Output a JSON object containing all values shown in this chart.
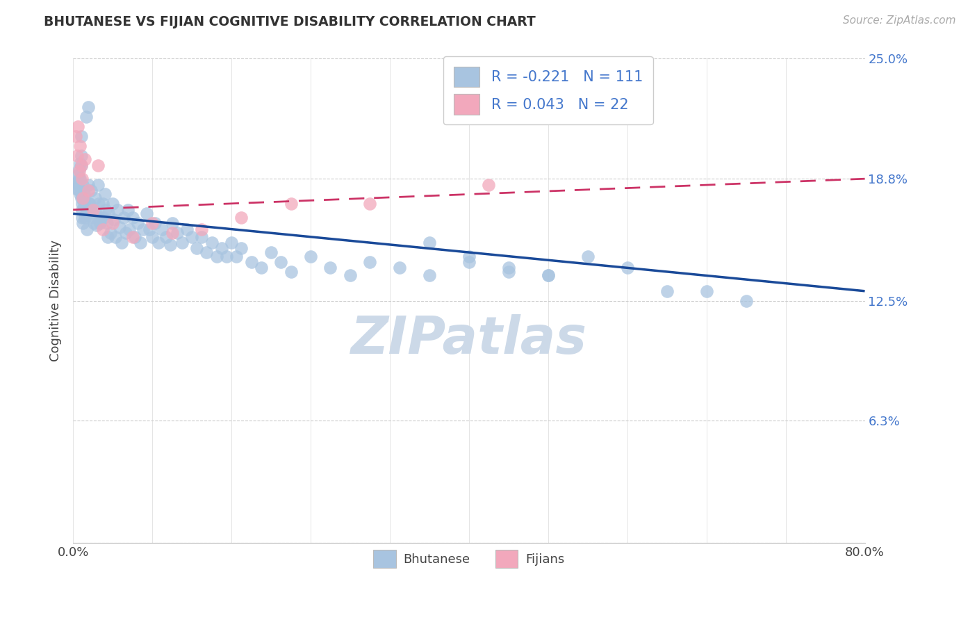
{
  "title": "BHUTANESE VS FIJIAN COGNITIVE DISABILITY CORRELATION CHART",
  "source": "Source: ZipAtlas.com",
  "ylabel": "Cognitive Disability",
  "x_min": 0.0,
  "x_max": 0.8,
  "y_min": 0.0,
  "y_max": 0.25,
  "yticks": [
    0.0,
    0.063,
    0.125,
    0.188,
    0.25
  ],
  "ytick_labels": [
    "",
    "6.3%",
    "12.5%",
    "18.8%",
    "25.0%"
  ],
  "r_bhutanese": -0.221,
  "n_bhutanese": 111,
  "r_fijian": 0.043,
  "n_fijian": 22,
  "bhutanese_color": "#a8c4e0",
  "fijian_color": "#f2a8bc",
  "trend_bhutanese_color": "#1a4a99",
  "trend_fijian_color": "#cc3366",
  "watermark_color": "#ccd9e8",
  "bhutanese_x": [
    0.003,
    0.004,
    0.005,
    0.005,
    0.006,
    0.006,
    0.006,
    0.007,
    0.007,
    0.007,
    0.008,
    0.008,
    0.008,
    0.008,
    0.009,
    0.009,
    0.009,
    0.01,
    0.01,
    0.01,
    0.011,
    0.011,
    0.012,
    0.012,
    0.013,
    0.013,
    0.014,
    0.015,
    0.015,
    0.016,
    0.017,
    0.018,
    0.019,
    0.02,
    0.021,
    0.022,
    0.023,
    0.024,
    0.025,
    0.026,
    0.027,
    0.028,
    0.03,
    0.031,
    0.032,
    0.033,
    0.034,
    0.035,
    0.036,
    0.038,
    0.04,
    0.041,
    0.043,
    0.045,
    0.047,
    0.049,
    0.051,
    0.053,
    0.055,
    0.057,
    0.06,
    0.062,
    0.065,
    0.068,
    0.071,
    0.074,
    0.077,
    0.08,
    0.083,
    0.086,
    0.09,
    0.094,
    0.098,
    0.1,
    0.105,
    0.11,
    0.115,
    0.12,
    0.125,
    0.13,
    0.135,
    0.14,
    0.145,
    0.15,
    0.155,
    0.16,
    0.165,
    0.17,
    0.18,
    0.19,
    0.2,
    0.21,
    0.22,
    0.24,
    0.26,
    0.28,
    0.3,
    0.33,
    0.36,
    0.4,
    0.44,
    0.48,
    0.52,
    0.56,
    0.6,
    0.36,
    0.4,
    0.44,
    0.48,
    0.64,
    0.68
  ],
  "bhutanese_y": [
    0.183,
    0.186,
    0.19,
    0.185,
    0.193,
    0.188,
    0.182,
    0.196,
    0.188,
    0.18,
    0.21,
    0.2,
    0.195,
    0.178,
    0.175,
    0.172,
    0.168,
    0.185,
    0.178,
    0.165,
    0.18,
    0.174,
    0.176,
    0.168,
    0.22,
    0.17,
    0.162,
    0.225,
    0.185,
    0.175,
    0.175,
    0.182,
    0.168,
    0.172,
    0.165,
    0.178,
    0.17,
    0.164,
    0.185,
    0.175,
    0.165,
    0.168,
    0.175,
    0.168,
    0.18,
    0.172,
    0.165,
    0.158,
    0.17,
    0.16,
    0.175,
    0.167,
    0.158,
    0.172,
    0.163,
    0.155,
    0.168,
    0.16,
    0.172,
    0.162,
    0.168,
    0.158,
    0.165,
    0.155,
    0.162,
    0.17,
    0.162,
    0.158,
    0.165,
    0.155,
    0.162,
    0.158,
    0.154,
    0.165,
    0.16,
    0.155,
    0.162,
    0.158,
    0.152,
    0.158,
    0.15,
    0.155,
    0.148,
    0.152,
    0.148,
    0.155,
    0.148,
    0.152,
    0.145,
    0.142,
    0.15,
    0.145,
    0.14,
    0.148,
    0.142,
    0.138,
    0.145,
    0.142,
    0.138,
    0.145,
    0.14,
    0.138,
    0.148,
    0.142,
    0.13,
    0.155,
    0.148,
    0.142,
    0.138,
    0.13,
    0.125
  ],
  "fijian_x": [
    0.003,
    0.004,
    0.005,
    0.006,
    0.007,
    0.008,
    0.009,
    0.01,
    0.012,
    0.015,
    0.02,
    0.025,
    0.03,
    0.04,
    0.06,
    0.08,
    0.1,
    0.13,
    0.17,
    0.22,
    0.3,
    0.42
  ],
  "fijian_y": [
    0.21,
    0.2,
    0.215,
    0.192,
    0.205,
    0.195,
    0.188,
    0.178,
    0.198,
    0.182,
    0.172,
    0.195,
    0.162,
    0.165,
    0.158,
    0.165,
    0.16,
    0.162,
    0.168,
    0.175,
    0.175,
    0.185
  ],
  "trend_b_x0": 0.0,
  "trend_b_y0": 0.17,
  "trend_b_x1": 0.8,
  "trend_b_y1": 0.13,
  "trend_f_x0": 0.0,
  "trend_f_y0": 0.172,
  "trend_f_x1": 0.8,
  "trend_f_y1": 0.188
}
